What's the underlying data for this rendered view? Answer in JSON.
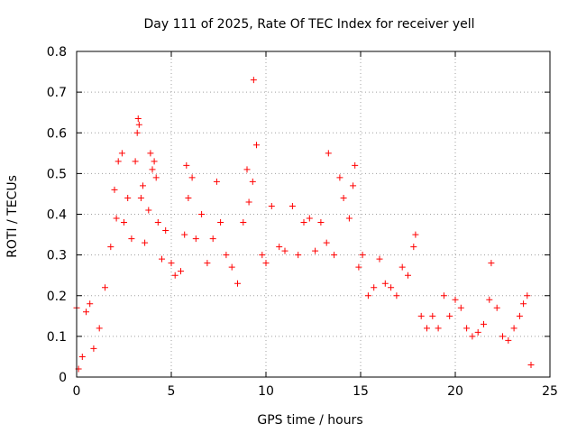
{
  "chart_data": {
    "type": "scatter",
    "title": "Day 111 of 2025, Rate Of TEC Index for receiver yell",
    "xlabel": "GPS time / hours",
    "ylabel": "ROTI / TECUs",
    "xlim": [
      0,
      25
    ],
    "ylim": [
      0,
      0.8
    ],
    "xticks": [
      0,
      5,
      10,
      15,
      20,
      25
    ],
    "yticks": [
      0,
      0.1,
      0.2,
      0.3,
      0.4,
      0.5,
      0.6,
      0.7,
      0.8
    ],
    "xtick_labels": [
      "0",
      "5",
      "10",
      "15",
      "20",
      "25"
    ],
    "ytick_labels": [
      "0",
      "0.1",
      "0.2",
      "0.3",
      "0.4",
      "0.5",
      "0.6",
      "0.7",
      "0.8"
    ],
    "grid": true,
    "marker": "+",
    "color": "#ff0000",
    "series": [
      {
        "name": "ROTI",
        "points": [
          [
            0.0,
            0.17
          ],
          [
            0.1,
            0.02
          ],
          [
            0.3,
            0.05
          ],
          [
            0.5,
            0.16
          ],
          [
            0.7,
            0.18
          ],
          [
            0.9,
            0.07
          ],
          [
            1.2,
            0.12
          ],
          [
            1.5,
            0.22
          ],
          [
            1.8,
            0.32
          ],
          [
            2.0,
            0.46
          ],
          [
            2.1,
            0.39
          ],
          [
            2.2,
            0.53
          ],
          [
            2.4,
            0.55
          ],
          [
            2.5,
            0.38
          ],
          [
            2.7,
            0.44
          ],
          [
            2.9,
            0.34
          ],
          [
            3.1,
            0.53
          ],
          [
            3.2,
            0.6
          ],
          [
            3.25,
            0.635
          ],
          [
            3.3,
            0.62
          ],
          [
            3.4,
            0.44
          ],
          [
            3.5,
            0.47
          ],
          [
            3.6,
            0.33
          ],
          [
            3.8,
            0.41
          ],
          [
            3.9,
            0.55
          ],
          [
            4.0,
            0.51
          ],
          [
            4.1,
            0.53
          ],
          [
            4.2,
            0.49
          ],
          [
            4.3,
            0.38
          ],
          [
            4.5,
            0.29
          ],
          [
            4.7,
            0.36
          ],
          [
            5.0,
            0.28
          ],
          [
            5.2,
            0.25
          ],
          [
            5.5,
            0.26
          ],
          [
            5.7,
            0.35
          ],
          [
            5.8,
            0.52
          ],
          [
            5.9,
            0.44
          ],
          [
            6.1,
            0.49
          ],
          [
            6.3,
            0.34
          ],
          [
            6.6,
            0.4
          ],
          [
            6.9,
            0.28
          ],
          [
            7.2,
            0.34
          ],
          [
            7.4,
            0.48
          ],
          [
            7.6,
            0.38
          ],
          [
            7.9,
            0.3
          ],
          [
            8.2,
            0.27
          ],
          [
            8.5,
            0.23
          ],
          [
            8.8,
            0.38
          ],
          [
            9.0,
            0.51
          ],
          [
            9.1,
            0.43
          ],
          [
            9.3,
            0.48
          ],
          [
            9.35,
            0.73
          ],
          [
            9.5,
            0.57
          ],
          [
            9.8,
            0.3
          ],
          [
            10.0,
            0.28
          ],
          [
            10.3,
            0.42
          ],
          [
            10.7,
            0.32
          ],
          [
            11.0,
            0.31
          ],
          [
            11.4,
            0.42
          ],
          [
            11.7,
            0.3
          ],
          [
            12.0,
            0.38
          ],
          [
            12.3,
            0.39
          ],
          [
            12.6,
            0.31
          ],
          [
            12.9,
            0.38
          ],
          [
            13.2,
            0.33
          ],
          [
            13.3,
            0.55
          ],
          [
            13.6,
            0.3
          ],
          [
            13.9,
            0.49
          ],
          [
            14.1,
            0.44
          ],
          [
            14.4,
            0.39
          ],
          [
            14.6,
            0.47
          ],
          [
            14.7,
            0.52
          ],
          [
            14.9,
            0.27
          ],
          [
            15.1,
            0.3
          ],
          [
            15.4,
            0.2
          ],
          [
            15.7,
            0.22
          ],
          [
            16.0,
            0.29
          ],
          [
            16.3,
            0.23
          ],
          [
            16.6,
            0.22
          ],
          [
            16.9,
            0.2
          ],
          [
            17.2,
            0.27
          ],
          [
            17.5,
            0.25
          ],
          [
            17.8,
            0.32
          ],
          [
            17.9,
            0.35
          ],
          [
            18.2,
            0.15
          ],
          [
            18.5,
            0.12
          ],
          [
            18.8,
            0.15
          ],
          [
            19.1,
            0.12
          ],
          [
            19.4,
            0.2
          ],
          [
            19.7,
            0.15
          ],
          [
            20.0,
            0.19
          ],
          [
            20.3,
            0.17
          ],
          [
            20.6,
            0.12
          ],
          [
            20.9,
            0.1
          ],
          [
            21.2,
            0.11
          ],
          [
            21.5,
            0.13
          ],
          [
            21.8,
            0.19
          ],
          [
            21.9,
            0.28
          ],
          [
            22.2,
            0.17
          ],
          [
            22.5,
            0.1
          ],
          [
            22.8,
            0.09
          ],
          [
            23.1,
            0.12
          ],
          [
            23.4,
            0.15
          ],
          [
            23.6,
            0.18
          ],
          [
            23.8,
            0.2
          ],
          [
            24.0,
            0.03
          ]
        ]
      }
    ]
  }
}
